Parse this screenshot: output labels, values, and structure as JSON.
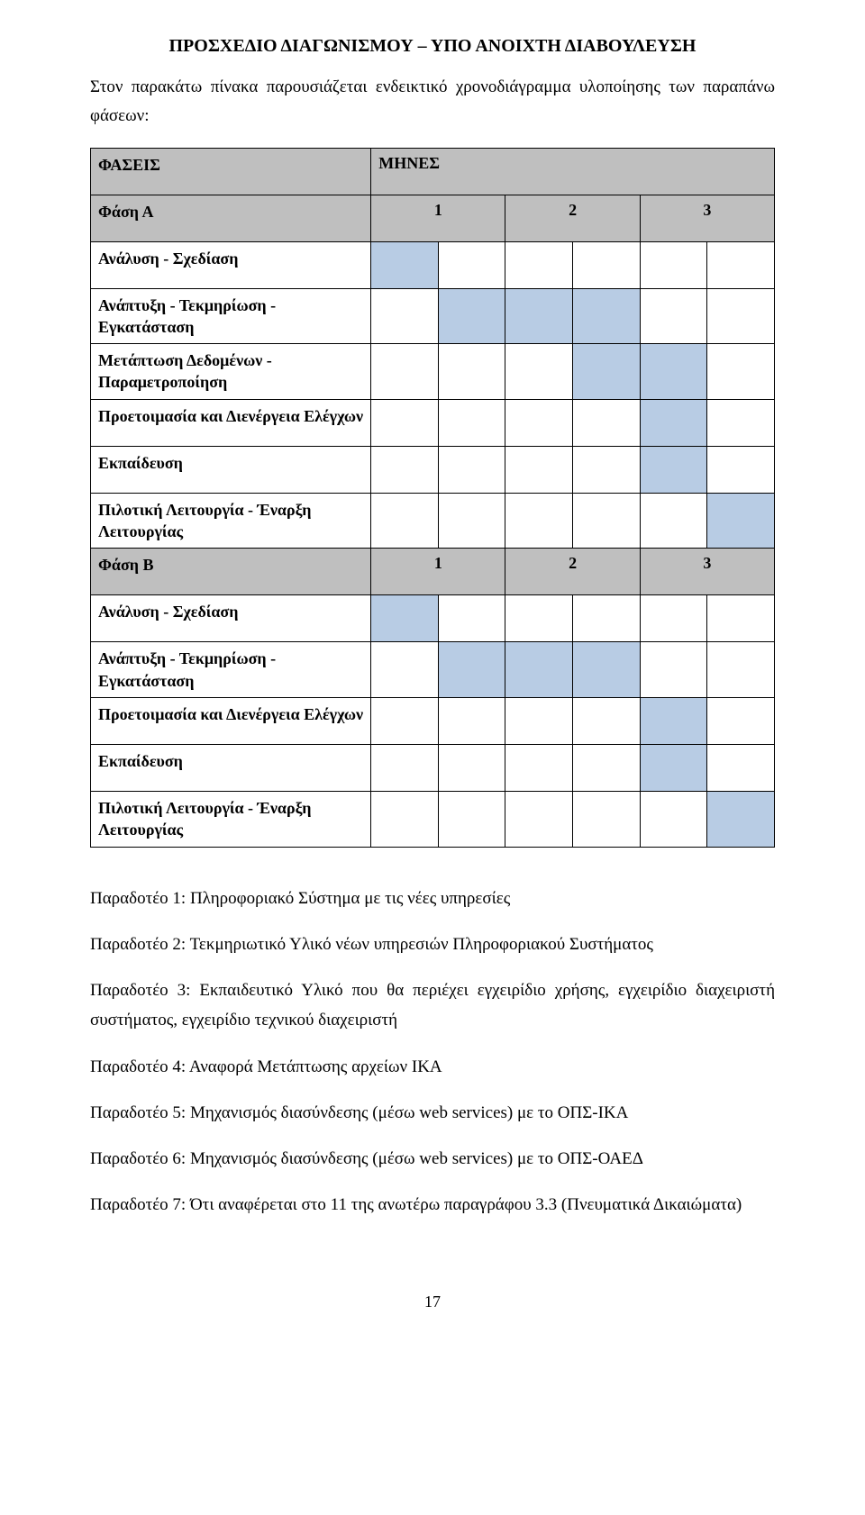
{
  "header": "ΠΡΟΣΧΕΔΙΟ ΔΙΑΓΩΝΙΣΜΟΥ – ΥΠΟ ΑΝΟΙΧΤΗ ΔΙΑΒΟΥΛΕΥΣΗ",
  "intro": "Στον παρακάτω πίνακα παρουσιάζεται ενδεικτικό χρονοδιάγραμμα υλοποίησης των παραπάνω φάσεων:",
  "colors": {
    "phase_header_bg": "#bfbfbf",
    "cell_filled_bg": "#b8cce4",
    "cell_border": "#000000",
    "page_bg": "#ffffff",
    "text": "#000000"
  },
  "table": {
    "phases_col_header": "ΦΑΣΕΙΣ",
    "months_col_header": "ΜΗΝΕΣ",
    "month_numbers": [
      "1",
      "2",
      "3"
    ],
    "phaseA": {
      "label": "Φάση Α",
      "rows": [
        {
          "label": "Ανάλυση - Σχεδίαση",
          "fill": [
            1,
            0,
            0,
            0,
            0,
            0
          ]
        },
        {
          "label": "Ανάπτυξη - Τεκμηρίωση - Εγκατάσταση",
          "fill": [
            0,
            1,
            1,
            1,
            0,
            0
          ]
        },
        {
          "label": "Μετάπτωση Δεδομένων - Παραμετροποίηση",
          "fill": [
            0,
            0,
            0,
            1,
            1,
            0
          ]
        },
        {
          "label": "Προετοιμασία και Διενέργεια Ελέγχων",
          "fill": [
            0,
            0,
            0,
            0,
            1,
            0
          ]
        },
        {
          "label": "Εκπαίδευση",
          "fill": [
            0,
            0,
            0,
            0,
            1,
            0
          ]
        },
        {
          "label": "Πιλοτική Λειτουργία - Έναρξη Λειτουργίας",
          "fill": [
            0,
            0,
            0,
            0,
            0,
            1
          ]
        }
      ]
    },
    "phaseB": {
      "label": "Φάση Β",
      "rows": [
        {
          "label": "Ανάλυση - Σχεδίαση",
          "fill": [
            1,
            0,
            0,
            0,
            0,
            0
          ]
        },
        {
          "label": "Ανάπτυξη - Τεκμηρίωση - Εγκατάσταση",
          "fill": [
            0,
            1,
            1,
            1,
            0,
            0
          ]
        },
        {
          "label": "Προετοιμασία και Διενέργεια Ελέγχων",
          "fill": [
            0,
            0,
            0,
            0,
            1,
            0
          ]
        },
        {
          "label": "Εκπαίδευση",
          "fill": [
            0,
            0,
            0,
            0,
            1,
            0
          ]
        },
        {
          "label": "Πιλοτική Λειτουργία - Έναρξη Λειτουργίας",
          "fill": [
            0,
            0,
            0,
            0,
            0,
            1
          ]
        }
      ]
    }
  },
  "deliverables": [
    "Παραδοτέο 1: Πληροφοριακό Σύστημα με τις νέες υπηρεσίες",
    "Παραδοτέο 2: Τεκμηριωτικό Υλικό νέων υπηρεσιών Πληροφοριακού Συστήματος",
    "Παραδοτέο 3: Εκπαιδευτικό Υλικό που θα περιέχει εγχειρίδιο χρήσης, εγχειρίδιο διαχειριστή συστήματος, εγχειρίδιο τεχνικού διαχειριστή",
    "Παραδοτέο 4: Αναφορά Μετάπτωσης αρχείων ΙΚΑ",
    "Παραδοτέο 5: Μηχανισμός διασύνδεσης (μέσω web services) με το ΟΠΣ-ΙΚΑ",
    "Παραδοτέο 6: Μηχανισμός διασύνδεσης (μέσω web services) με το ΟΠΣ-ΟΑΕΔ",
    "Παραδοτέο 7: Ότι αναφέρεται στο 11 της ανωτέρω παραγράφου 3.3 (Πνευματικά Δικαιώματα)"
  ],
  "page_number": "17"
}
